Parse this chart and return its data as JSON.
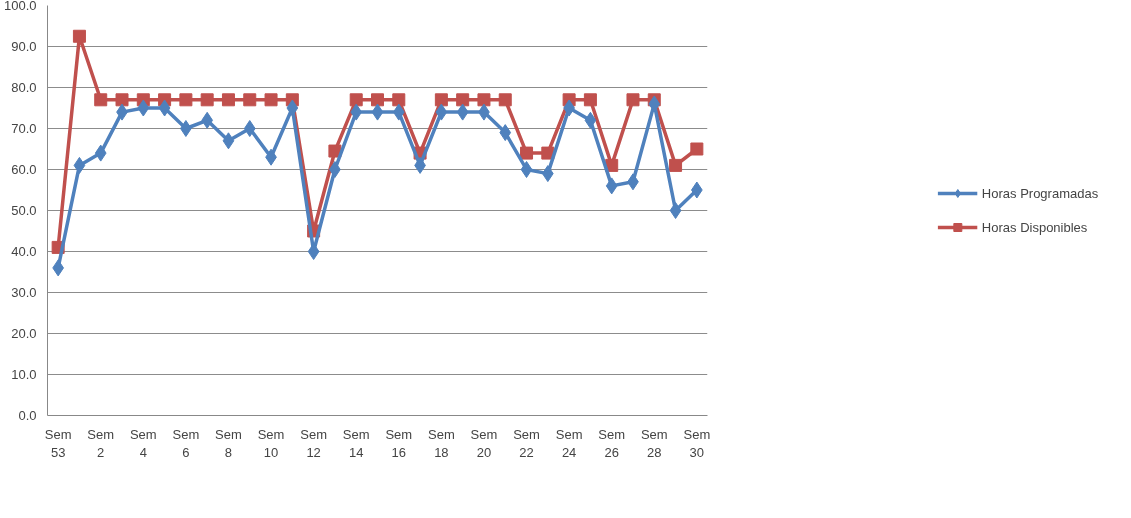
{
  "chart_data": {
    "type": "line",
    "categories": [
      "Sem 53",
      null,
      "Sem 2",
      null,
      "Sem 4",
      null,
      "Sem 6",
      null,
      "Sem 8",
      null,
      "Sem 10",
      null,
      "Sem 12",
      null,
      "Sem 14",
      null,
      "Sem 16",
      null,
      "Sem 18",
      null,
      "Sem 20",
      null,
      "Sem 22",
      null,
      "Sem 24",
      null,
      "Sem 26",
      null,
      "Sem 28",
      null,
      "Sem 30"
    ],
    "series": [
      {
        "name": "Horas Programadas",
        "color": "#4f81bd",
        "marker": "diamond",
        "values": [
          36,
          61,
          64,
          74,
          75,
          75,
          70,
          72,
          67,
          70,
          63,
          75,
          40,
          60,
          74,
          74,
          74,
          61,
          74,
          74,
          74,
          69,
          60,
          59,
          75,
          72,
          56,
          57,
          76,
          50,
          55
        ]
      },
      {
        "name": "Horas Disponibles",
        "color": "#c0504d",
        "marker": "square",
        "values": [
          41,
          92.5,
          77,
          77,
          77,
          77,
          77,
          77,
          77,
          77,
          77,
          77,
          45,
          64.5,
          77,
          77,
          77,
          64,
          77,
          77,
          77,
          77,
          64,
          64,
          77,
          77,
          61,
          77,
          77,
          61,
          65
        ]
      }
    ],
    "ylim": [
      0,
      100
    ],
    "yticks": [
      {
        "value": 0,
        "label": "0.0"
      },
      {
        "value": 10,
        "label": "10.0"
      },
      {
        "value": 20,
        "label": "20.0"
      },
      {
        "value": 30,
        "label": "30.0"
      },
      {
        "value": 40,
        "label": "40.0"
      },
      {
        "value": 50,
        "label": "50.0"
      },
      {
        "value": 60,
        "label": "60.0"
      },
      {
        "value": 70,
        "label": "70.0"
      },
      {
        "value": 80,
        "label": "80.0"
      },
      {
        "value": 90,
        "label": "90.0"
      },
      {
        "value": 100,
        "label": "100.0"
      }
    ],
    "grid": "y",
    "legend": "right",
    "line_style": "solid"
  }
}
